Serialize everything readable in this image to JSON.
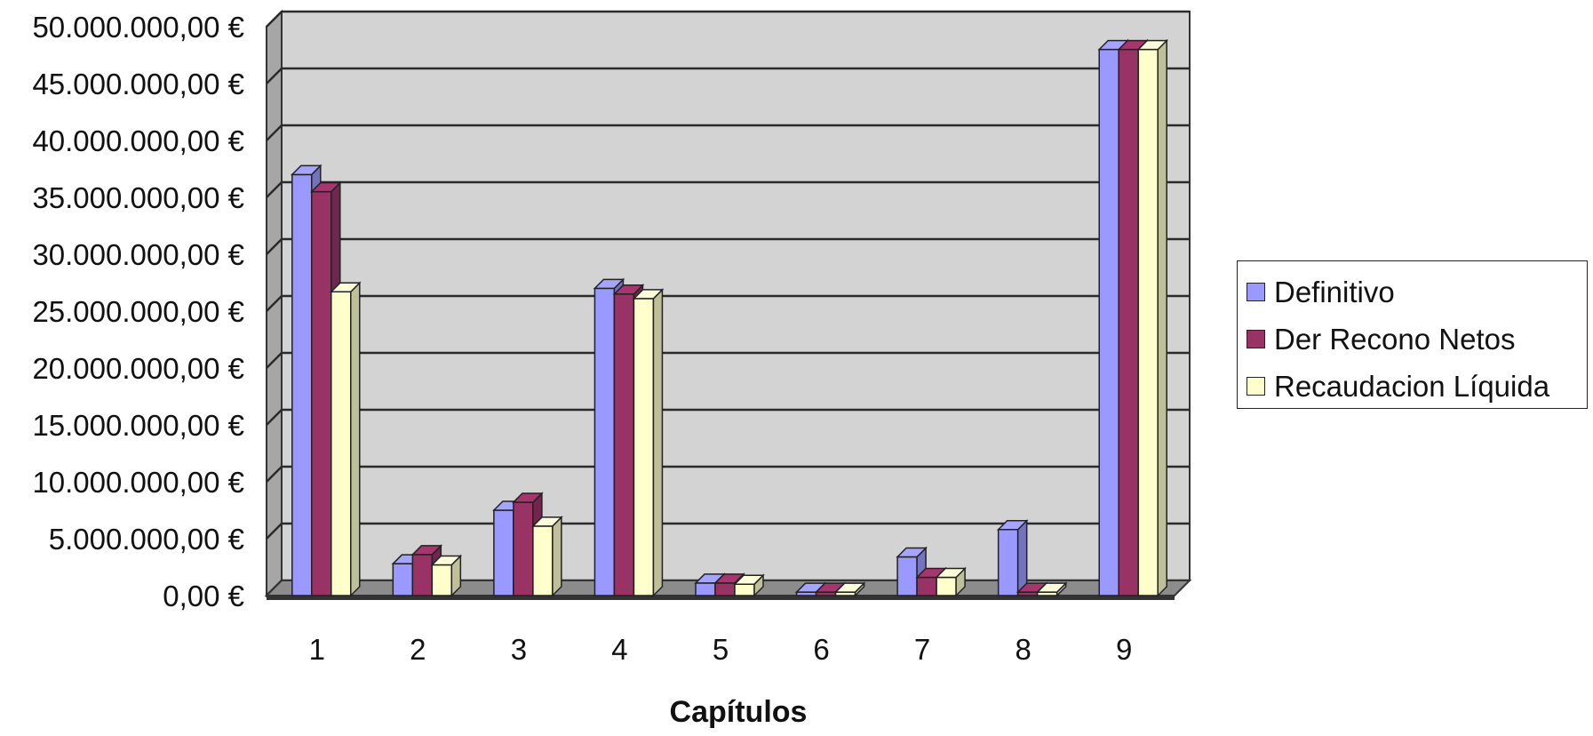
{
  "chart_data": {
    "type": "bar",
    "categories": [
      "1",
      "2",
      "3",
      "4",
      "5",
      "6",
      "7",
      "8",
      "9"
    ],
    "series": [
      {
        "name": "Definitivo",
        "values": [
          37000000,
          2800000,
          7500000,
          27000000,
          1100000,
          300000,
          3400000,
          5800000,
          48000000
        ]
      },
      {
        "name": "Der Recono Netos",
        "values": [
          35500000,
          3600000,
          8200000,
          26500000,
          1100000,
          300000,
          1600000,
          300000,
          48000000
        ]
      },
      {
        "name": "Recaudacion Líquida",
        "values": [
          26700000,
          2700000,
          6100000,
          26100000,
          1000000,
          300000,
          1600000,
          300000,
          48000000
        ]
      }
    ],
    "colors": [
      "#9999ff",
      "#993366",
      "#ffffcc"
    ],
    "title": "",
    "xlabel": "Capítulos",
    "ylabel": "",
    "ylim": [
      0,
      50000000
    ],
    "yticks": [
      0,
      5000000,
      10000000,
      15000000,
      20000000,
      25000000,
      30000000,
      35000000,
      40000000,
      45000000,
      50000000
    ],
    "ytick_labels": [
      "0,00 €",
      "5.000.000,00 €",
      "10.000.000,00 €",
      "15.000.000,00 €",
      "20.000.000,00 €",
      "25.000.000,00 €",
      "30.000.000,00 €",
      "35.000.000,00 €",
      "40.000.000,00 €",
      "45.000.000,00 €",
      "50.000.000,00 €"
    ],
    "grid": true,
    "legend_position": "right",
    "style": "3d-clustered-columns"
  }
}
